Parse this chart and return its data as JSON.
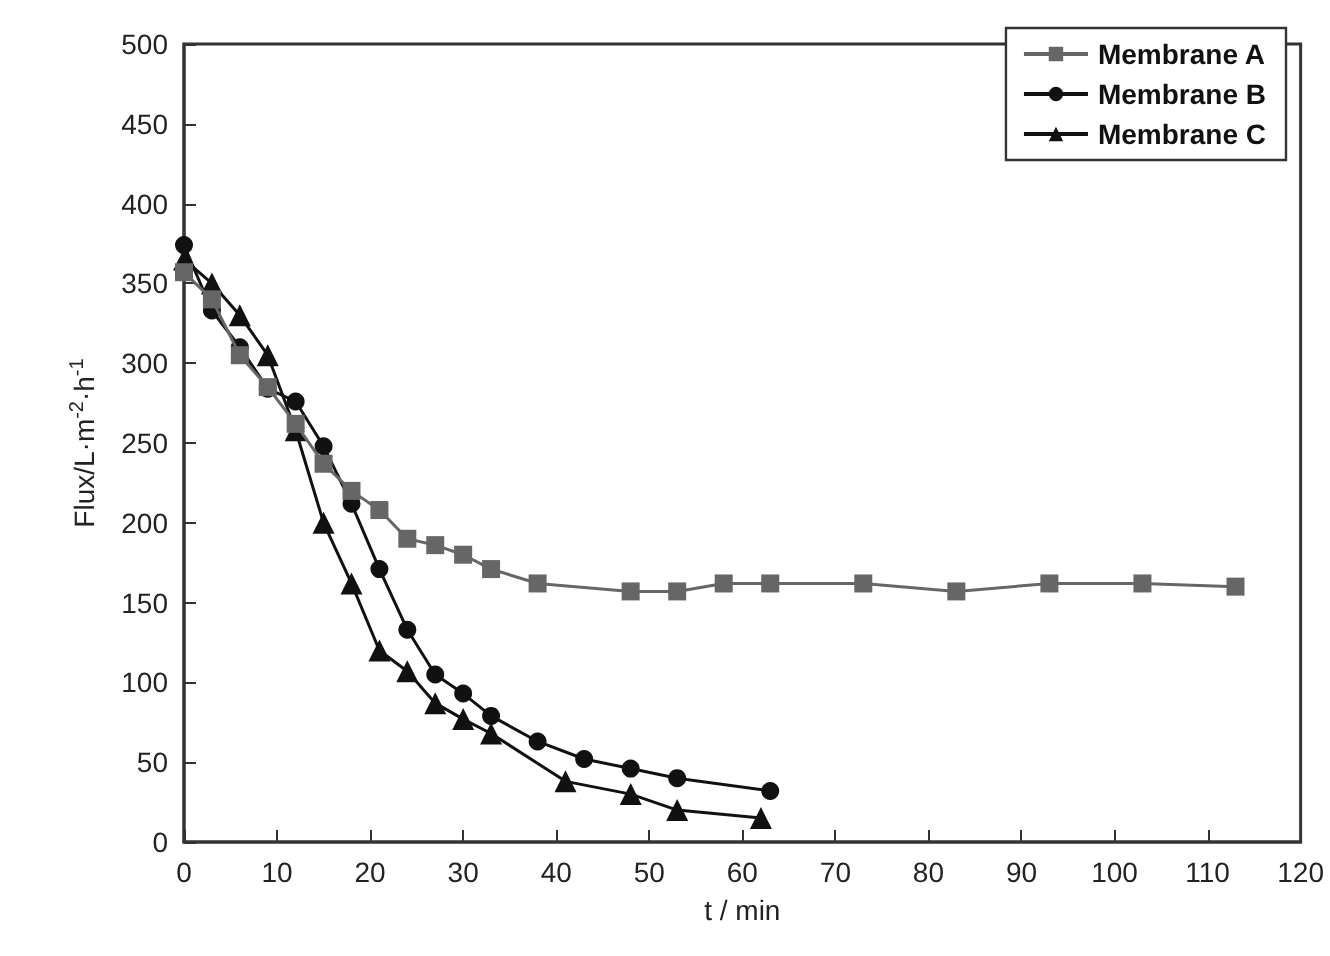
{
  "chart_data": {
    "type": "line",
    "xlabel": "t / min",
    "ylabel": "Flux/L·m$^{-2}$·h$^{-1}$",
    "xlim": [
      0,
      120
    ],
    "xticks": [
      0,
      10,
      20,
      30,
      40,
      50,
      60,
      70,
      80,
      90,
      100,
      110,
      120
    ],
    "ylim": [
      0,
      500
    ],
    "yticks": [
      0,
      50,
      100,
      150,
      200,
      250,
      300,
      350,
      400,
      450,
      500
    ],
    "grid": false,
    "legend": "top right",
    "line_style": "solid",
    "series": [
      {
        "name": "Membrane A",
        "color": "#666666",
        "marker": "square",
        "x": [
          0,
          3,
          6,
          9,
          12,
          15,
          18,
          21,
          24,
          27,
          30,
          33,
          38,
          48,
          53,
          58,
          63,
          73,
          83,
          93,
          103,
          113
        ],
        "values": [
          357,
          340,
          305,
          285,
          262,
          237,
          220,
          208,
          190,
          186,
          180,
          171,
          162,
          157,
          157,
          162,
          162,
          162,
          157,
          162,
          162,
          160
        ]
      },
      {
        "name": "Membrane B",
        "color": "#111111",
        "marker": "circle",
        "x": [
          0,
          3,
          6,
          9,
          12,
          15,
          18,
          21,
          24,
          27,
          30,
          33,
          38,
          43,
          48,
          53,
          63
        ],
        "values": [
          374,
          333,
          310,
          284,
          276,
          248,
          212,
          171,
          133,
          105,
          93,
          79,
          63,
          52,
          46,
          40,
          32
        ]
      },
      {
        "name": "Membrane C",
        "color": "#111111",
        "marker": "triangle",
        "x": [
          0,
          3,
          6,
          9,
          12,
          15,
          18,
          21,
          24,
          27,
          30,
          33,
          41,
          48,
          53,
          62
        ],
        "values": [
          365,
          350,
          330,
          305,
          258,
          200,
          162,
          120,
          107,
          87,
          77,
          68,
          38,
          30,
          20,
          15
        ]
      }
    ]
  }
}
